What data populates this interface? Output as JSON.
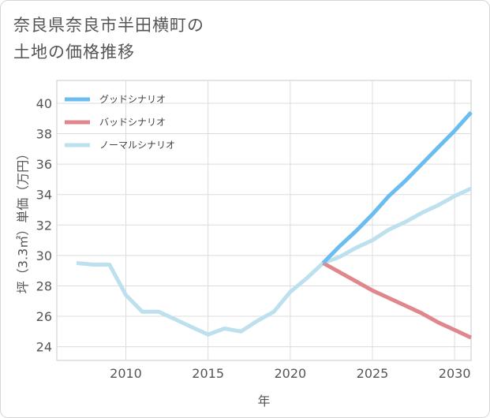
{
  "title_lines": [
    "奈良県奈良市半田横町の",
    "土地の価格推移"
  ],
  "chart_data": {
    "type": "line",
    "title": "奈良県奈良市半田横町の土地の価格推移",
    "xlabel": "年",
    "ylabel": "坪（3.3㎡）単価（万円）",
    "xlim": [
      2005.8,
      2031
    ],
    "ylim": [
      23.1,
      41.5
    ],
    "xticks": [
      2010,
      2015,
      2020,
      2025,
      2030
    ],
    "yticks": [
      24,
      26,
      28,
      30,
      32,
      34,
      36,
      38,
      40
    ],
    "grid": true,
    "legend_position": "top-left",
    "series": [
      {
        "name": "グッドシナリオ",
        "color": "#6bbdf0",
        "x": [
          2022,
          2023,
          2024,
          2025,
          2026,
          2027,
          2028,
          2029,
          2030,
          2031
        ],
        "y": [
          29.5,
          30.6,
          31.6,
          32.7,
          33.9,
          34.9,
          36.0,
          37.1,
          38.2,
          39.4
        ]
      },
      {
        "name": "バッドシナリオ",
        "color": "#e0868d",
        "x": [
          2022,
          2023,
          2024,
          2025,
          2026,
          2027,
          2028,
          2029,
          2030,
          2031
        ],
        "y": [
          29.5,
          28.9,
          28.3,
          27.7,
          27.2,
          26.7,
          26.2,
          25.6,
          25.1,
          24.6
        ]
      },
      {
        "name": "ノーマルシナリオ",
        "color": "#bde0ef",
        "x": [
          2007,
          2008,
          2009,
          2010,
          2011,
          2012,
          2013,
          2014,
          2015,
          2016,
          2017,
          2018,
          2019,
          2020,
          2021,
          2022,
          2023,
          2024,
          2025,
          2026,
          2027,
          2028,
          2029,
          2030,
          2031
        ],
        "y": [
          29.5,
          29.4,
          29.4,
          27.4,
          26.3,
          26.3,
          25.8,
          25.3,
          24.8,
          25.2,
          25.0,
          25.7,
          26.3,
          27.6,
          28.5,
          29.5,
          29.9,
          30.5,
          31.0,
          31.7,
          32.2,
          32.8,
          33.3,
          33.9,
          34.4
        ]
      }
    ]
  }
}
